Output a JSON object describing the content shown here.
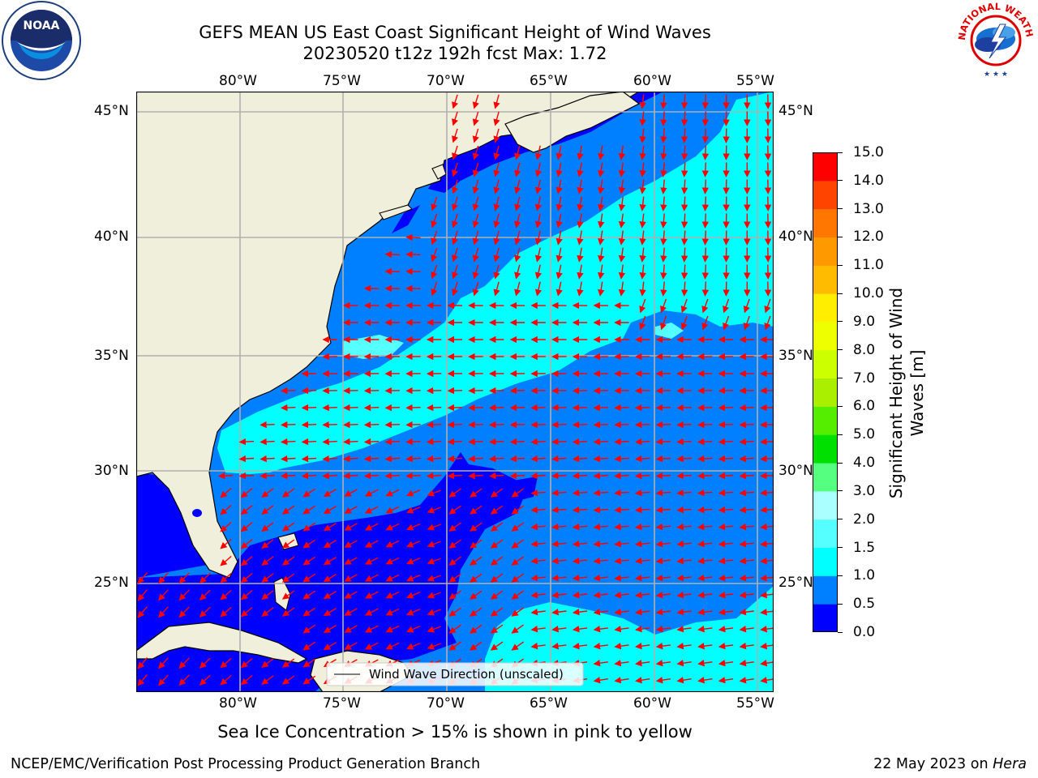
{
  "title_line1": "GEFS MEAN US East Coast Significant Height of Wind Waves",
  "title_line2": "20230520 t12z 192h fcst   Max: 1.72",
  "top_lon_labels": [
    "80°W",
    "75°W",
    "70°W",
    "65°W",
    "60°W",
    "55°W"
  ],
  "bottom_lon_labels": [
    "80°W",
    "75°W",
    "70°W",
    "65°W",
    "60°W",
    "55°W"
  ],
  "left_lat_labels": [
    "45°N",
    "40°N",
    "35°N",
    "30°N",
    "25°N"
  ],
  "right_lat_labels": [
    "45°N",
    "40°N",
    "35°N",
    "30°N",
    "25°N"
  ],
  "legend_label": "Wind Wave Direction (unscaled)",
  "colorbar": {
    "title_line1": "Significant Height of Wind",
    "title_line2": "Waves [m]",
    "tick_labels": [
      "0.0",
      "0.5",
      "1.0",
      "1.5",
      "2.0",
      "3.0",
      "4.0",
      "5.0",
      "6.0",
      "7.0",
      "8.0",
      "9.0",
      "10.0",
      "11.0",
      "12.0",
      "13.0",
      "14.0",
      "15.0"
    ],
    "colors": [
      "#0000ff",
      "#0080ff",
      "#00ffff",
      "#55ffff",
      "#aaffff",
      "#55ff80",
      "#00e000",
      "#55ee00",
      "#aaee00",
      "#ccff00",
      "#eeff00",
      "#ffee00",
      "#ffbb00",
      "#ff9900",
      "#ff7700",
      "#ff4400",
      "#ff0000"
    ]
  },
  "caption": "Sea Ice Concentration > 15% is shown in pink to yellow",
  "footer_left": "NCEP/EMC/Verification Post Processing Product Generation Branch",
  "footer_date": "22 May 2023 on",
  "footer_machine": "Hera",
  "logos": {
    "left_icon": "noaa-logo",
    "left_text": "NOAA",
    "right_icon": "nws-logo",
    "right_text": "NATIONAL WEATHER SERVICE"
  },
  "map_colors": {
    "land": "#efefdc",
    "coast": "#000000",
    "grid": "#b0b0b0",
    "arrow": "#ff0000",
    "lake": "#0000ff"
  }
}
